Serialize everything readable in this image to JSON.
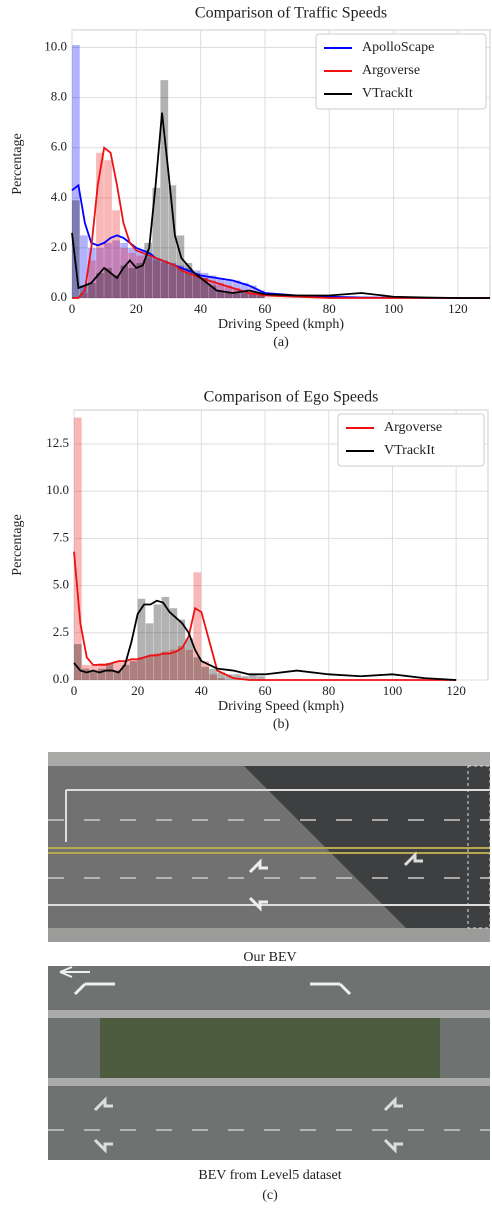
{
  "chart_data": [
    {
      "type": "histogram",
      "title": "Comparison of Traffic Speeds",
      "xlabel": "Driving Speed (kmph)",
      "ylabel": "Percentage",
      "caption": "(a)",
      "x": [
        0,
        2,
        4,
        6,
        8,
        10,
        12,
        14,
        16,
        18,
        20,
        22,
        24,
        26,
        28,
        30,
        32,
        34,
        36,
        38,
        40,
        45,
        50,
        55,
        60,
        70,
        80,
        90,
        100,
        110,
        120,
        130
      ],
      "bins": [
        0,
        2.5,
        5,
        7.5,
        10,
        12.5,
        15,
        17.5,
        20,
        22.5,
        25,
        27.5,
        30,
        32.5,
        35,
        37.5,
        40,
        42.5,
        45,
        47.5,
        50,
        52.5,
        55,
        57.5,
        60
      ],
      "xlim": [
        0,
        130
      ],
      "ylim": [
        0,
        10.7
      ],
      "xticks": [
        0,
        20,
        40,
        60,
        80,
        100,
        120
      ],
      "yticks": [
        {
          "value": 0,
          "label": "0.0"
        },
        {
          "value": 2,
          "label": "2.0"
        },
        {
          "value": 4,
          "label": "4.0"
        },
        {
          "value": 6,
          "label": "6.0"
        },
        {
          "value": 8,
          "label": "8.0"
        },
        {
          "value": 10,
          "label": "10.0"
        }
      ],
      "grid": true,
      "legend": "upper right",
      "series": [
        {
          "name": "ApolloScape",
          "color": "#0000ff",
          "values": [
            4.3,
            4.5,
            3.0,
            2.2,
            2.1,
            2.2,
            2.4,
            2.5,
            2.4,
            2.2,
            2.0,
            1.9,
            1.8,
            1.6,
            1.5,
            1.4,
            1.3,
            1.2,
            1.1,
            1.0,
            0.9,
            0.8,
            0.7,
            0.5,
            0.2,
            0.1,
            0.05,
            0.02,
            0.01,
            0,
            0,
            0
          ],
          "hist_counts": [
            10.1,
            2.5,
            2.0,
            2.0,
            2.2,
            2.3,
            2.2,
            2.0,
            1.9,
            1.8,
            1.6,
            1.5,
            1.4,
            1.3,
            1.2,
            1.1,
            1.0,
            0.9,
            0.8,
            0.7,
            0.7,
            0.6,
            0.5,
            0.3
          ]
        },
        {
          "name": "Argoverse",
          "color": "#ee1111",
          "values": [
            0,
            0,
            0.3,
            2.0,
            4.5,
            6.0,
            5.8,
            4.5,
            3.0,
            2.2,
            1.9,
            1.8,
            1.7,
            1.6,
            1.5,
            1.4,
            1.3,
            1.1,
            1.0,
            0.9,
            0.8,
            0.6,
            0.4,
            0.2,
            0.1,
            0.05,
            0,
            0,
            0,
            0,
            0,
            0
          ],
          "hist_counts": [
            0,
            0.2,
            1.5,
            5.8,
            5.5,
            3.5,
            2.0,
            1.8,
            1.7,
            1.6,
            1.5,
            1.4,
            1.3,
            1.2,
            1.0,
            0.9,
            0.8,
            0.7,
            0.6,
            0.5,
            0.4,
            0.3,
            0.2,
            0.1
          ]
        },
        {
          "name": "VTrackIt",
          "color": "#000000",
          "values": [
            2.6,
            0.4,
            0.5,
            0.6,
            0.9,
            1.2,
            1.0,
            0.8,
            1.2,
            1.5,
            1.2,
            1.3,
            2.0,
            4.5,
            7.4,
            5.0,
            2.5,
            1.6,
            1.3,
            1.0,
            0.8,
            0.3,
            0.2,
            0.3,
            0.15,
            0.1,
            0.1,
            0.2,
            0.05,
            0.02,
            0,
            0
          ],
          "hist_counts": [
            3.9,
            0.5,
            0.6,
            1.0,
            1.2,
            0.9,
            1.3,
            1.2,
            1.4,
            2.2,
            4.4,
            8.7,
            4.5,
            2.5,
            1.4,
            1.0,
            0.8,
            0.5,
            0.3,
            0.2,
            0.2,
            0.3,
            0.2,
            0.1
          ]
        }
      ]
    },
    {
      "type": "histogram",
      "title": "Comparison of Ego Speeds",
      "xlabel": "Driving Speed (kmph)",
      "ylabel": "Percentage",
      "caption": "(b)",
      "x": [
        0,
        2,
        4,
        6,
        8,
        10,
        12,
        14,
        16,
        18,
        20,
        22,
        24,
        26,
        28,
        30,
        32,
        34,
        36,
        38,
        40,
        45,
        50,
        55,
        60,
        70,
        80,
        90,
        100,
        110,
        120
      ],
      "bins": [
        0,
        2.5,
        5,
        7.5,
        10,
        12.5,
        15,
        17.5,
        20,
        22.5,
        25,
        27.5,
        30,
        32.5,
        35,
        37.5,
        40,
        42.5,
        45,
        47.5,
        50,
        52.5,
        55,
        57.5,
        60
      ],
      "xlim": [
        0,
        130
      ],
      "ylim": [
        0,
        14.3
      ],
      "xticks": [
        0,
        20,
        40,
        60,
        80,
        100,
        120
      ],
      "yticks": [
        {
          "value": 0,
          "label": "0.0"
        },
        2.5,
        {
          "value": 5,
          "label": "5.0"
        },
        7.5,
        {
          "value": 10,
          "label": "10.0"
        },
        12.5
      ],
      "grid": true,
      "legend": "upper right",
      "series": [
        {
          "name": "Argoverse",
          "color": "#ee1111",
          "values": [
            6.8,
            3.0,
            1.2,
            0.8,
            0.8,
            0.8,
            0.9,
            1.0,
            1.0,
            1.1,
            1.1,
            1.2,
            1.3,
            1.3,
            1.4,
            1.4,
            1.5,
            1.7,
            2.3,
            3.8,
            3.6,
            0.5,
            0.1,
            0,
            0,
            0,
            0,
            0,
            0,
            0,
            0
          ],
          "hist_counts": [
            13.9,
            0.8,
            0.8,
            0.9,
            0.9,
            1.0,
            1.0,
            1.1,
            1.2,
            1.3,
            1.4,
            1.5,
            1.6,
            1.8,
            1.6,
            5.7,
            1.0,
            0.3,
            0.1,
            0,
            0,
            0,
            0,
            0
          ]
        },
        {
          "name": "VTrackIt",
          "color": "#000000",
          "values": [
            0.9,
            0.5,
            0.4,
            0.5,
            0.4,
            0.5,
            0.5,
            0.4,
            0.8,
            2.0,
            3.5,
            4.0,
            4.0,
            4.2,
            4.1,
            3.6,
            3.3,
            3.0,
            2.5,
            1.6,
            1.0,
            0.6,
            0.5,
            0.3,
            0.3,
            0.5,
            0.3,
            0.2,
            0.3,
            0.1,
            0
          ],
          "hist_counts": [
            1.9,
            0.6,
            0.5,
            0.6,
            0.9,
            0.5,
            0.8,
            1.0,
            4.3,
            3.0,
            4.0,
            4.4,
            3.8,
            3.2,
            2.2,
            1.2,
            0.7,
            0.6,
            0.4,
            0.3,
            0.3,
            0.2,
            0.3,
            0.2
          ]
        }
      ]
    }
  ],
  "images": [
    {
      "caption": "Our BEV"
    },
    {
      "caption": "BEV from Level5 dataset"
    }
  ],
  "images_label": "(c)"
}
